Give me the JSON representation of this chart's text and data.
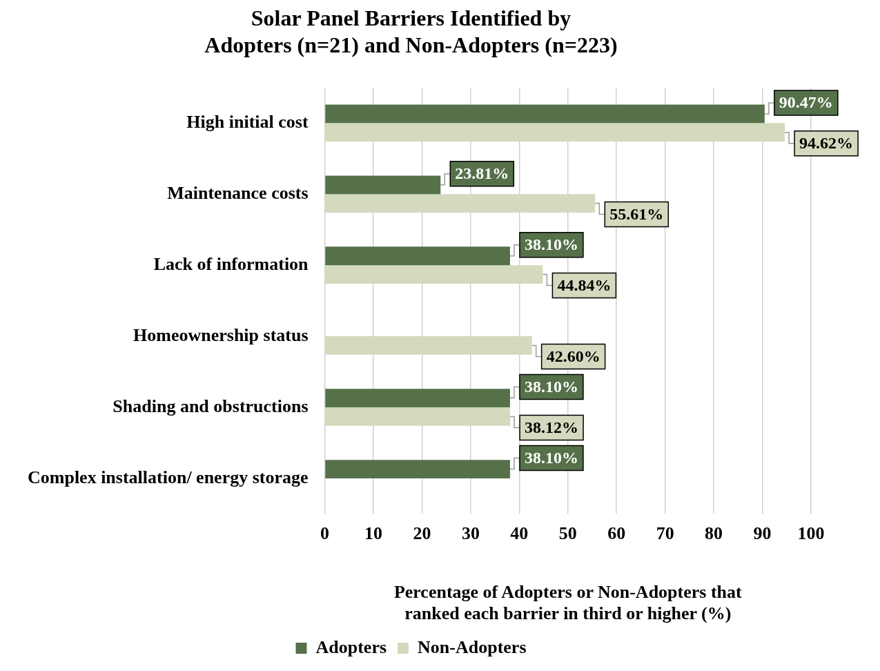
{
  "chart_data": {
    "type": "bar",
    "orientation": "horizontal",
    "title": "Solar Panel Barriers Identified by\nAdopters (n=21) and Non-Adopters (n=223)",
    "xlabel": "Percentage of Adopters or Non-Adopters that\nranked each barrier in third or higher (%)",
    "categories": [
      "High initial cost",
      "Maintenance costs",
      "Lack of information",
      "Homeownership status",
      "Shading and obstructions",
      "Complex installation/ energy storage"
    ],
    "series": [
      {
        "name": "Adopters",
        "color": "#56714a",
        "values": [
          90.47,
          23.81,
          38.1,
          null,
          38.1,
          38.1
        ],
        "value_labels": [
          "90.47%",
          "23.81%",
          "38.10%",
          null,
          "38.10%",
          "38.10%"
        ]
      },
      {
        "name": "Non-Adopters",
        "color": "#d3dabd",
        "values": [
          94.62,
          55.61,
          44.84,
          42.6,
          38.12,
          null
        ],
        "value_labels": [
          "94.62%",
          "55.61%",
          "44.84%",
          "42.60%",
          "38.12%",
          null
        ]
      }
    ],
    "xlim": [
      0,
      100
    ],
    "xticks": [
      0,
      10,
      20,
      30,
      40,
      50,
      60,
      70,
      80,
      90,
      100
    ],
    "grid": "x",
    "legend": "bottom"
  }
}
